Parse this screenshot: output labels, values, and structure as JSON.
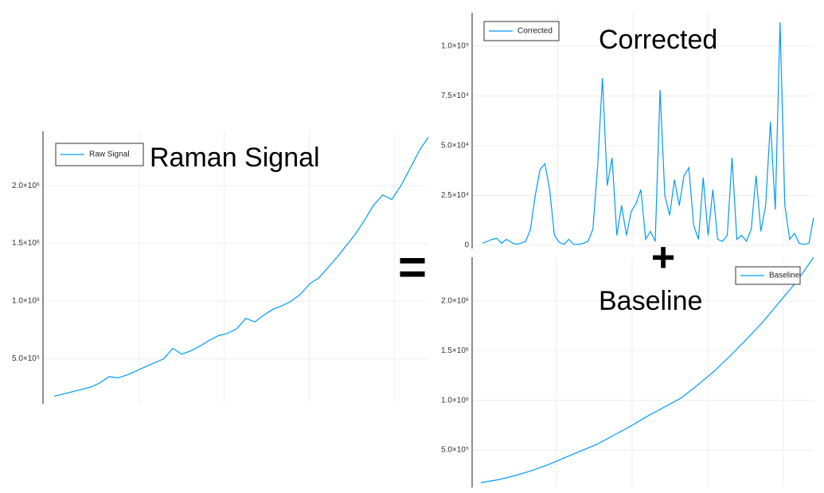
{
  "chart_data": [
    {
      "type": "line",
      "title": "Raman Signal",
      "legend": "top-left",
      "grid": true,
      "series": [
        {
          "name": "Raw Signal",
          "color": "#009afa",
          "values": [
            175000,
            195000,
            215000,
            235000,
            255000,
            290000,
            345000,
            335000,
            360000,
            395000,
            430000,
            465000,
            500000,
            590000,
            540000,
            570000,
            610000,
            660000,
            700000,
            720000,
            760000,
            850000,
            820000,
            880000,
            930000,
            960000,
            1000000,
            1060000,
            1150000,
            1200000,
            1290000,
            1380000,
            1480000,
            1580000,
            1700000,
            1830000,
            1920000,
            1880000,
            2000000,
            2150000,
            2300000,
            2420000
          ]
        }
      ],
      "ylim": [
        110000,
        2470000
      ],
      "yticks": [
        {
          "value": 500000,
          "label": "5.0×10⁵"
        },
        {
          "value": 1000000,
          "label": "1.0×10⁶"
        },
        {
          "value": 1500000,
          "label": "1.5×10⁶"
        },
        {
          "value": 2000000,
          "label": "2.0×10⁶"
        }
      ]
    },
    {
      "type": "line",
      "title": "Corrected",
      "legend": "top-left",
      "grid": true,
      "series": [
        {
          "name": "Corrected",
          "color": "#009afa",
          "values": [
            1000,
            2000,
            3000,
            3500,
            1000,
            3000,
            1500,
            500,
            1000,
            2000,
            8000,
            25000,
            38000,
            41000,
            28000,
            5000,
            1500,
            500,
            3000,
            500,
            500,
            1000,
            2000,
            8000,
            40000,
            84000,
            30000,
            44000,
            5000,
            20000,
            5000,
            17000,
            21000,
            28000,
            3000,
            7000,
            2000,
            78000,
            25000,
            15000,
            33000,
            20000,
            35000,
            39000,
            10000,
            3000,
            34000,
            5000,
            28000,
            3000,
            2000,
            5000,
            44000,
            3000,
            5000,
            2000,
            8000,
            35000,
            7000,
            20000,
            62000,
            18000,
            112000,
            20000,
            3000,
            6000,
            1000,
            500,
            1000,
            14000
          ]
        }
      ],
      "ylim": [
        -1600,
        116800
      ],
      "yticks": [
        0,
        {
          "value": 25000,
          "label": "2.5×10⁴"
        },
        {
          "value": 50000,
          "label": "5.0×10⁴"
        },
        {
          "value": 75000,
          "label": "7.5×10⁴"
        },
        {
          "value": 100000,
          "label": "1.0×10⁵"
        }
      ]
    },
    {
      "type": "line",
      "title": "Baseline",
      "legend": "top-right",
      "grid": true,
      "series": [
        {
          "name": "Baseline",
          "color": "#009afa",
          "values": [
            172000,
            200000,
            240000,
            290000,
            350000,
            420000,
            490000,
            560000,
            650000,
            740000,
            840000,
            930000,
            1020000,
            1150000,
            1290000,
            1450000,
            1620000,
            1800000,
            2000000,
            2200000,
            2440000
          ]
        }
      ],
      "ylim": [
        124000,
        2440000
      ],
      "yticks": [
        {
          "value": 500000,
          "label": "5.0×10⁵"
        },
        {
          "value": 1000000,
          "label": "1.0×10⁶"
        },
        {
          "value": 1500000,
          "label": "1.5×10⁶"
        },
        {
          "value": 2000000,
          "label": "2.0×10⁶"
        }
      ]
    }
  ],
  "operators": {
    "equals": "=",
    "plus": "+"
  }
}
